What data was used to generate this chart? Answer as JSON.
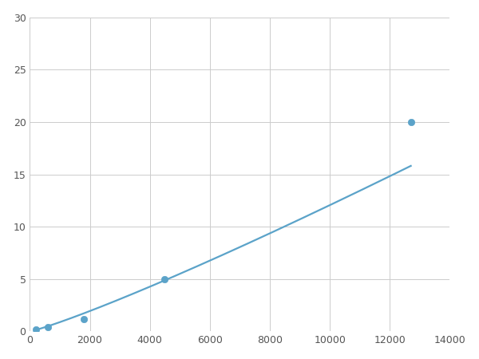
{
  "x": [
    200,
    600,
    1800,
    4500,
    12700
  ],
  "y": [
    0.2,
    0.4,
    1.2,
    5.0,
    20.0
  ],
  "line_color": "#5ba3c9",
  "marker_color": "#5ba3c9",
  "marker_size": 6,
  "line_width": 1.6,
  "xlim": [
    0,
    14000
  ],
  "ylim": [
    0,
    30
  ],
  "xticks": [
    0,
    2000,
    4000,
    6000,
    8000,
    10000,
    12000,
    14000
  ],
  "yticks": [
    0,
    5,
    10,
    15,
    20,
    25,
    30
  ],
  "grid": true,
  "background_color": "#ffffff",
  "grid_color": "#cccccc"
}
